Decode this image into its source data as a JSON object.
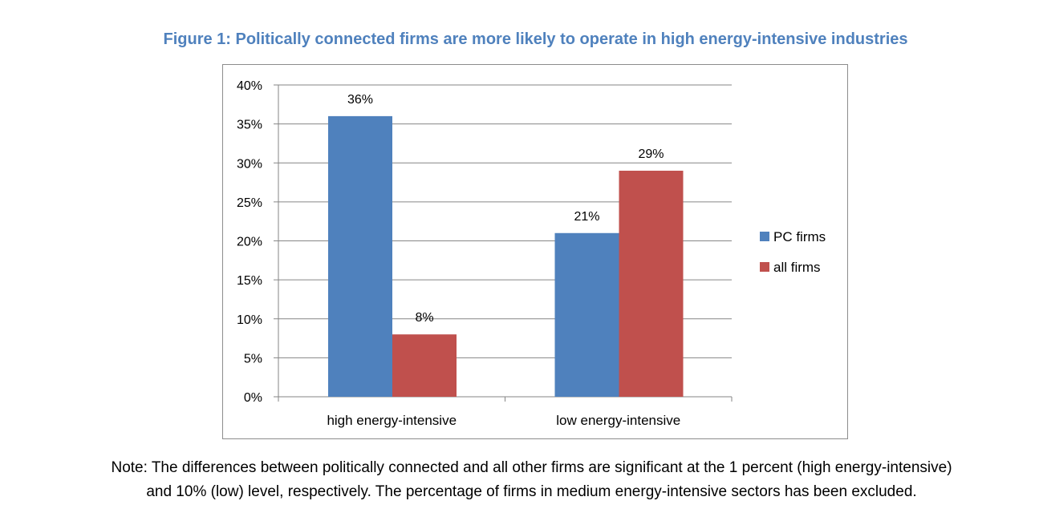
{
  "figure_title": "Figure 1: Politically connected firms are more likely to operate in high energy-intensive industries",
  "note_lines": [
    "Note: The differences between politically connected and all other firms are significant at the 1 percent (high energy-intensive)",
    "and 10% (low) level, respectively. The percentage of firms in medium energy-intensive sectors has been excluded."
  ],
  "colors": {
    "title": "#4f81bd",
    "pc_firms": "#4f81bd",
    "all_firms": "#c0504d"
  },
  "chart_data": {
    "type": "bar",
    "title": "",
    "xlabel": "",
    "ylabel": "",
    "categories": [
      "high energy-intensive",
      "low energy-intensive"
    ],
    "series": [
      {
        "name": "PC firms",
        "values": [
          0.36,
          0.21
        ],
        "labels": [
          "36%",
          "21%"
        ]
      },
      {
        "name": "all firms",
        "values": [
          0.08,
          0.29
        ],
        "labels": [
          "8%",
          "29%"
        ]
      }
    ],
    "ylim": [
      0,
      0.4
    ],
    "yticks": [
      "0%",
      "5%",
      "10%",
      "15%",
      "20%",
      "25%",
      "30%",
      "35%",
      "40%"
    ],
    "grid": true,
    "legend_position": "right"
  }
}
